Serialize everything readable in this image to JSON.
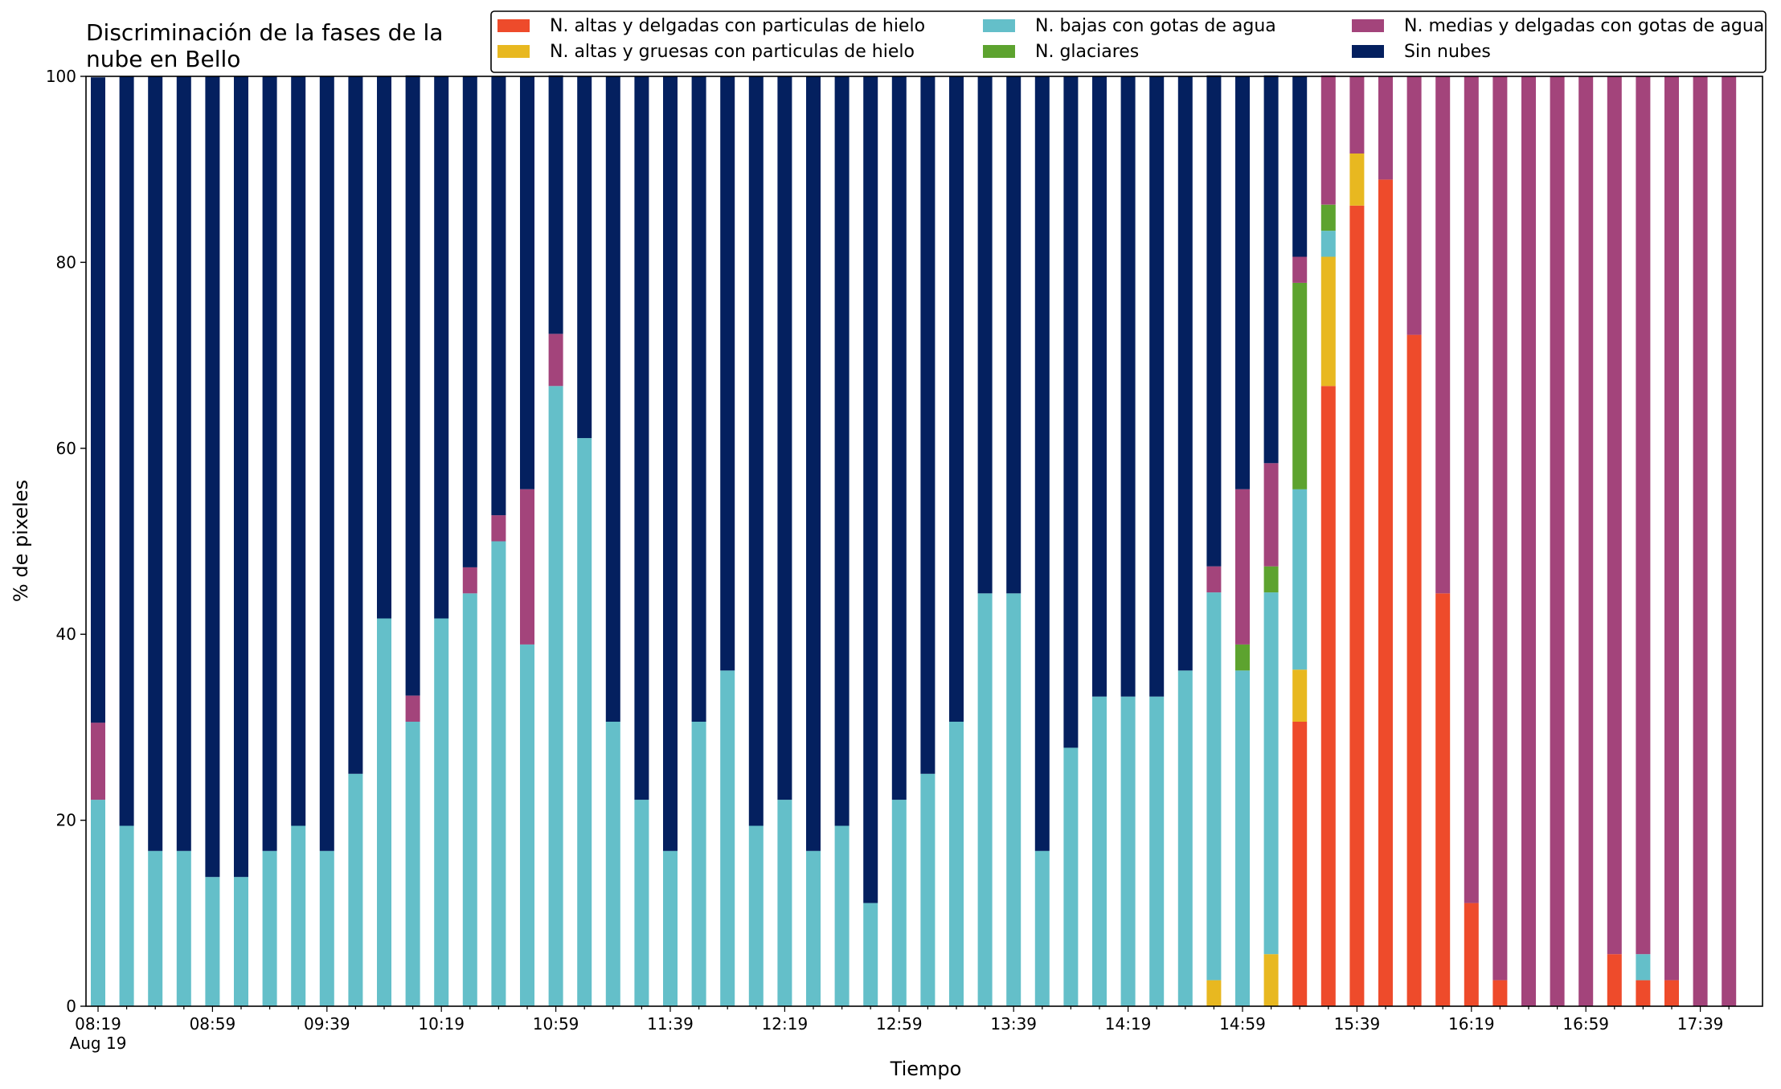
{
  "chart_data": {
    "type": "bar",
    "stacked": true,
    "title_lines": [
      "Discriminación de la fases de la",
      "nube en Bello"
    ],
    "xlabel": "Tiempo",
    "ylabel": "% de pixeles",
    "ylim": [
      0,
      100
    ],
    "yticks": [
      0,
      20,
      40,
      60,
      80,
      100
    ],
    "xtick_labels": [
      "08:19",
      "08:59",
      "09:39",
      "10:19",
      "10:59",
      "11:39",
      "12:19",
      "12:59",
      "13:39",
      "14:19",
      "14:59",
      "15:39",
      "16:19",
      "16:59",
      "17:39"
    ],
    "xtick_sublabel": "Aug 19",
    "categories": [
      "08:19",
      "08:29",
      "08:39",
      "08:49",
      "08:59",
      "09:09",
      "09:19",
      "09:29",
      "09:39",
      "09:49",
      "09:59",
      "10:09",
      "10:19",
      "10:29",
      "10:39",
      "10:49",
      "10:59",
      "11:09",
      "11:19",
      "11:29",
      "11:39",
      "11:49",
      "11:59",
      "12:09",
      "12:19",
      "12:29",
      "12:39",
      "12:49",
      "12:59",
      "13:09",
      "13:19",
      "13:29",
      "13:39",
      "13:49",
      "13:59",
      "14:09",
      "14:19",
      "14:29",
      "14:39",
      "14:49",
      "14:59",
      "15:09",
      "15:19",
      "15:29",
      "15:39",
      "15:49",
      "15:59",
      "16:09",
      "16:19",
      "16:29",
      "16:39",
      "16:49",
      "16:59",
      "17:09",
      "17:19",
      "17:29",
      "17:39",
      "17:49"
    ],
    "legend_position": "top-right",
    "series": [
      {
        "name": "N. altas y delgadas con particulas de hielo",
        "color": "#ee4b2b",
        "values": [
          0,
          0,
          0,
          0,
          0,
          0,
          0,
          0,
          0,
          0,
          0,
          0,
          0,
          0,
          0,
          0,
          0,
          0,
          0,
          0,
          0,
          0,
          0,
          0,
          0,
          0,
          0,
          0,
          0,
          0,
          0,
          0,
          0,
          0,
          0,
          0,
          0,
          0,
          0,
          0,
          0,
          0,
          30.6,
          66.7,
          86.1,
          88.9,
          72.2,
          44.4,
          11.1,
          2.8,
          0,
          0,
          0,
          5.6,
          2.8,
          2.8,
          0,
          0
        ]
      },
      {
        "name": "N. altas y gruesas con particulas de hielo",
        "color": "#e8b820",
        "values": [
          0,
          0,
          0,
          0,
          0,
          0,
          0,
          0,
          0,
          0,
          0,
          0,
          0,
          0,
          0,
          0,
          0,
          0,
          0,
          0,
          0,
          0,
          0,
          0,
          0,
          0,
          0,
          0,
          0,
          0,
          0,
          0,
          0,
          0,
          0,
          0,
          0,
          0,
          0,
          2.8,
          0,
          5.6,
          5.6,
          13.9,
          5.6,
          0,
          0,
          0,
          0,
          0,
          0,
          0,
          0,
          0,
          0,
          0,
          0,
          0
        ]
      },
      {
        "name": "N. bajas con gotas de agua",
        "color": "#64bfc9",
        "values": [
          22.2,
          19.4,
          16.7,
          16.7,
          13.9,
          13.9,
          16.7,
          19.4,
          16.7,
          25.0,
          41.7,
          30.6,
          41.7,
          44.4,
          50.0,
          38.9,
          66.7,
          61.1,
          30.6,
          22.2,
          16.7,
          30.6,
          36.1,
          19.4,
          22.2,
          16.7,
          19.4,
          11.1,
          22.2,
          25.0,
          30.6,
          44.4,
          44.4,
          16.7,
          27.8,
          33.3,
          33.3,
          33.3,
          36.1,
          41.7,
          36.1,
          38.9,
          19.4,
          2.8,
          0,
          0,
          0,
          0,
          0,
          0,
          0,
          0,
          0,
          0,
          2.8,
          0,
          0,
          0
        ]
      },
      {
        "name": "N. glaciares",
        "color": "#5da32f",
        "values": [
          0,
          0,
          0,
          0,
          0,
          0,
          0,
          0,
          0,
          0,
          0,
          0,
          0,
          0,
          0,
          0,
          0,
          0,
          0,
          0,
          0,
          0,
          0,
          0,
          0,
          0,
          0,
          0,
          0,
          0,
          0,
          0,
          0,
          0,
          0,
          0,
          0,
          0,
          0,
          0,
          2.8,
          2.8,
          22.2,
          2.8,
          0,
          0,
          0,
          0,
          0,
          0,
          0,
          0,
          0,
          0,
          0,
          0,
          0,
          0
        ]
      },
      {
        "name": "N. medias y delgadas con gotas de agua",
        "color": "#a3447b",
        "values": [
          8.3,
          0,
          0,
          0,
          0,
          0,
          0,
          0,
          0,
          0,
          0,
          2.8,
          0,
          2.8,
          2.8,
          16.7,
          5.6,
          0,
          0,
          0,
          0,
          0,
          0,
          0,
          0,
          0,
          0,
          0,
          0,
          0,
          0,
          0,
          0,
          0,
          0,
          0,
          0,
          0,
          0,
          2.8,
          16.7,
          11.1,
          2.8,
          13.9,
          8.3,
          11.1,
          27.8,
          55.6,
          88.9,
          97.2,
          100,
          100,
          100,
          94.4,
          94.4,
          97.2,
          100,
          100
        ]
      },
      {
        "name": "Sin nubes",
        "color": "#04205f",
        "values": [
          69.4,
          80.6,
          83.3,
          83.3,
          86.1,
          86.1,
          83.3,
          80.6,
          83.3,
          75.0,
          58.3,
          66.7,
          58.3,
          52.8,
          47.2,
          44.4,
          27.8,
          38.9,
          69.4,
          77.8,
          83.3,
          69.4,
          63.9,
          80.6,
          77.8,
          83.3,
          80.6,
          88.9,
          77.8,
          75.0,
          69.4,
          55.6,
          55.6,
          83.3,
          72.2,
          66.7,
          66.7,
          66.7,
          63.9,
          52.8,
          44.4,
          41.7,
          19.4,
          0,
          0,
          0,
          0,
          0,
          0,
          0,
          0,
          0,
          0,
          0,
          0,
          0,
          0,
          0
        ]
      }
    ]
  }
}
